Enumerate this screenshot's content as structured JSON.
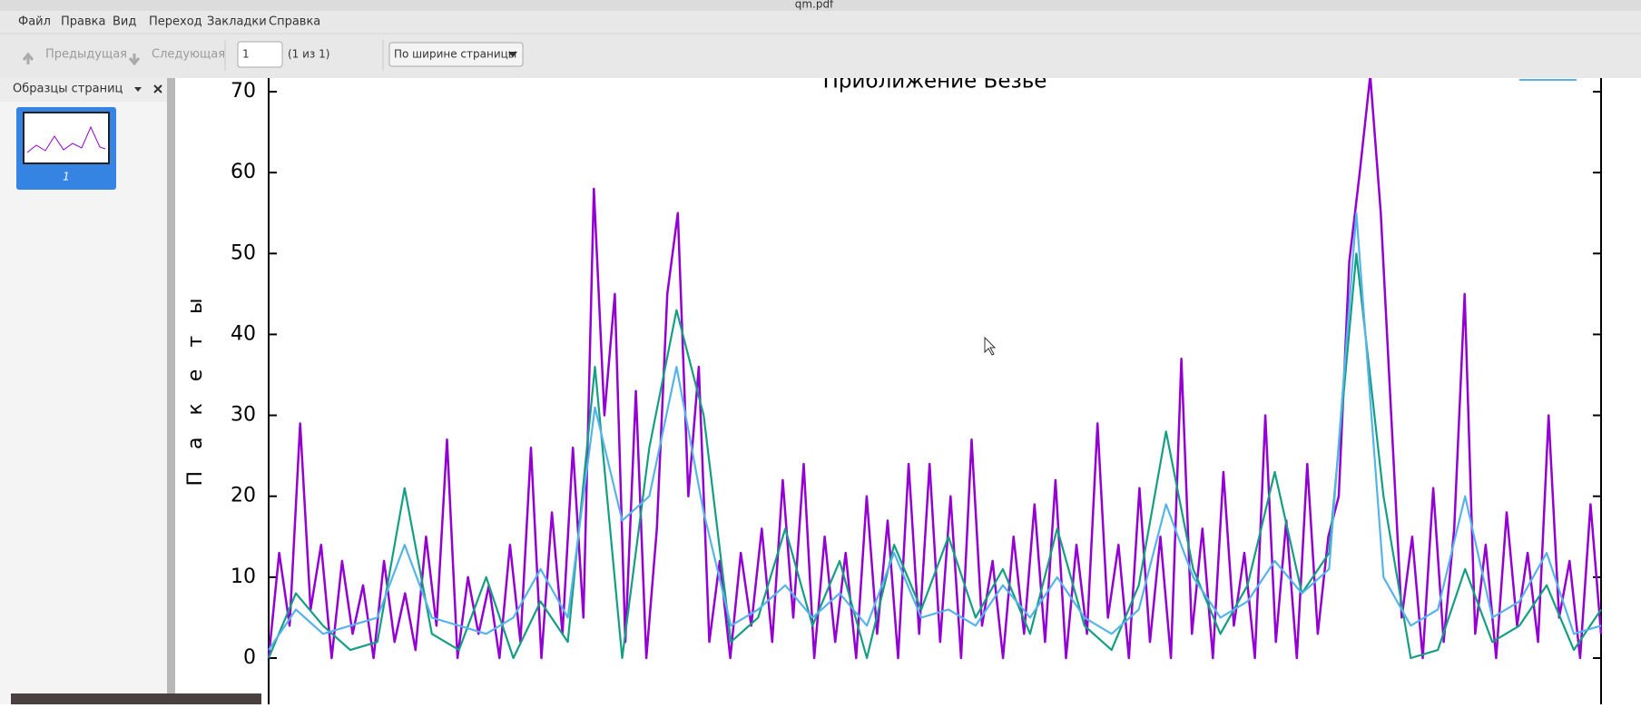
{
  "window": {
    "title": "qm.pdf"
  },
  "menu": [
    "Файл",
    "Правка",
    "Вид",
    "Переход",
    "Закладки",
    "Справка"
  ],
  "toolbar": {
    "prev": "Предыдущая",
    "next": "Следующая",
    "page": "1",
    "page_count": "(1 из 1)",
    "zoom": "По ширине страницы"
  },
  "sidebar": {
    "title": "Образцы страниц",
    "thumbnail_label": "1"
  },
  "chart_data": {
    "type": "line",
    "title": "Приближение Безье",
    "y_label": "Пакеты",
    "ylim": [
      0,
      70
    ],
    "yticks": [
      0,
      10,
      20,
      30,
      40,
      50,
      60,
      70
    ],
    "series": [
      {
        "color": "#9400d3",
        "values": [
          0,
          13,
          4,
          29,
          6,
          14,
          0,
          12,
          3,
          9,
          0,
          12,
          2,
          8,
          1,
          15,
          4,
          27,
          0,
          10,
          3,
          9,
          0,
          14,
          2,
          26,
          0,
          18,
          3,
          26,
          5,
          58,
          30,
          45,
          2,
          33,
          0,
          16,
          45,
          55,
          20,
          36,
          2,
          12,
          0,
          13,
          4,
          16,
          2,
          22,
          5,
          24,
          0,
          15,
          2,
          13,
          0,
          20,
          3,
          17,
          0,
          24,
          3,
          24,
          2,
          20,
          0,
          27,
          4,
          12,
          0,
          15,
          3,
          19,
          2,
          22,
          0,
          14,
          3,
          29,
          5,
          14,
          0,
          21,
          2,
          15,
          0,
          37,
          3,
          16,
          0,
          23,
          4,
          13,
          0,
          30,
          2,
          17,
          0,
          24,
          3,
          15,
          20,
          49,
          60,
          72,
          55,
          30,
          5,
          15,
          0,
          21,
          2,
          16,
          45,
          3,
          14,
          0,
          18,
          4,
          13,
          2,
          30,
          5,
          12,
          0,
          19,
          3
        ]
      },
      {
        "color": "#149e82",
        "values": [
          0,
          8,
          4,
          1,
          2,
          21,
          3,
          1,
          10,
          0,
          7,
          2,
          36,
          0,
          26,
          43,
          30,
          2,
          5,
          16,
          4,
          12,
          0,
          14,
          6,
          15,
          5,
          11,
          3,
          16,
          4,
          1,
          9,
          28,
          11,
          3,
          9,
          23,
          8,
          13,
          50,
          20,
          0,
          1,
          11,
          2,
          4,
          9,
          1,
          6
        ]
      },
      {
        "color": "#56b4e9",
        "values": [
          1,
          6,
          3,
          4,
          5,
          14,
          5,
          4,
          3,
          5,
          11,
          5,
          31,
          17,
          20,
          36,
          18,
          4,
          6,
          9,
          5,
          8,
          4,
          13,
          5,
          6,
          4,
          9,
          5,
          10,
          5,
          3,
          6,
          19,
          10,
          5,
          7,
          12,
          8,
          11,
          55,
          10,
          4,
          6,
          20,
          5,
          7,
          13,
          3,
          4
        ]
      }
    ]
  }
}
